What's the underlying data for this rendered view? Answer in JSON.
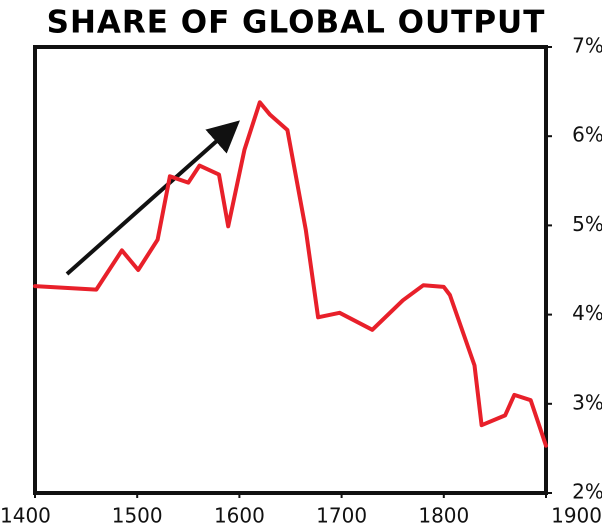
{
  "chart_data": {
    "type": "line",
    "title": "SHARE OF GLOBAL OUTPUT",
    "x": [
      1400,
      1460,
      1485,
      1501,
      1520,
      1532,
      1550,
      1561,
      1580,
      1589,
      1605,
      1620,
      1630,
      1647,
      1665,
      1677,
      1698,
      1730,
      1760,
      1780,
      1800,
      1806,
      1830,
      1837,
      1860,
      1869,
      1885,
      1900
    ],
    "values": [
      4.32,
      4.28,
      4.72,
      4.5,
      4.84,
      5.55,
      5.48,
      5.67,
      5.57,
      4.99,
      5.85,
      6.38,
      6.24,
      6.07,
      4.95,
      3.97,
      4.02,
      3.83,
      4.16,
      4.33,
      4.31,
      4.22,
      3.43,
      2.76,
      2.87,
      3.1,
      3.04,
      2.53
    ],
    "color": "#e8202a",
    "xlim": [
      1400,
      1900
    ],
    "xticks": [
      1400,
      1500,
      1600,
      1700,
      1800,
      1900
    ],
    "ylim": [
      2,
      7
    ],
    "yticks": [
      {
        "value": 2,
        "label": "2%"
      },
      {
        "value": 3,
        "label": "3%"
      },
      {
        "value": 4,
        "label": "4%"
      },
      {
        "value": 5,
        "label": "5%"
      },
      {
        "value": 6,
        "label": "6%"
      },
      {
        "value": 7,
        "label": "7%"
      }
    ]
  }
}
